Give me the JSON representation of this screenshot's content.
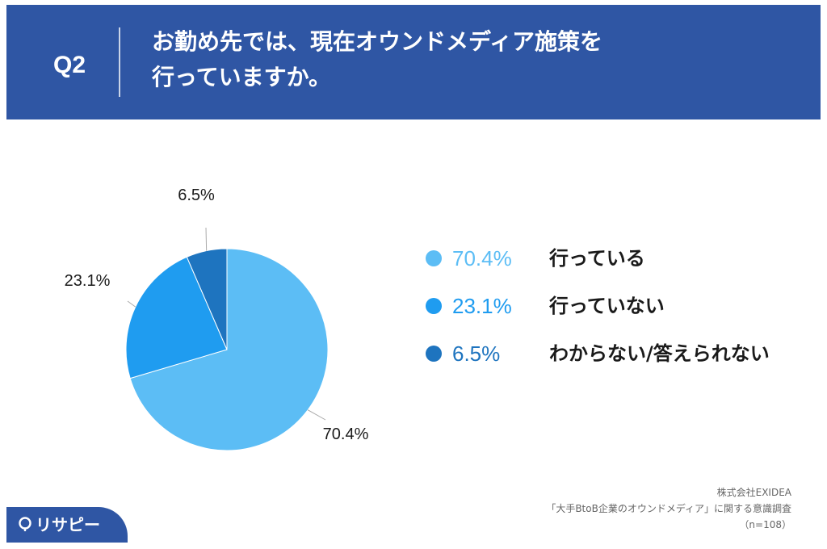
{
  "header": {
    "qnum": "Q2",
    "question_line1": "お勤め先では、現在オウンドメディア施策を",
    "question_line2": "行っていますか。"
  },
  "chart_data": {
    "type": "pie",
    "slices": [
      {
        "label": "行っている",
        "value": 70.4,
        "display": "70.4%",
        "color": "#5cbdf5"
      },
      {
        "label": "行っていない",
        "value": 23.1,
        "display": "23.1%",
        "color": "#1f9cf0"
      },
      {
        "label": "わからない/答えられない",
        "value": 6.5,
        "display": "6.5%",
        "color": "#1e74bf"
      }
    ],
    "legend_position": "right"
  },
  "legend": [
    {
      "pct": "70.4%",
      "label": "行っている",
      "color": "#5cbdf5"
    },
    {
      "pct": "23.1%",
      "label": "行っていない",
      "color": "#1f9cf0"
    },
    {
      "pct": "6.5%",
      "label": "わからない/答えられない",
      "color": "#1e74bf"
    }
  ],
  "footer": {
    "company": "株式会社EXIDEA",
    "survey": "「大手BtoB企業のオウンドメディア」に関する意識調査",
    "sample": "（n=108）"
  },
  "brand": {
    "logo_text": "リサピー",
    "color": "#2f56a4"
  }
}
